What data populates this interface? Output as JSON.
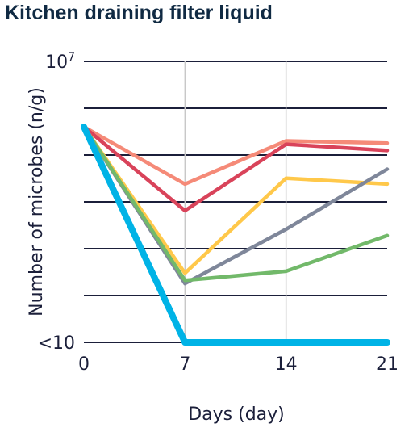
{
  "chart_data": {
    "type": "line",
    "title": "Kitchen draining filter liquid",
    "xlabel": "Days (day)",
    "ylabel": "Number of microbes (n/g)",
    "y_scale": "log",
    "ylim": [
      10,
      10000000
    ],
    "y_ticks": [
      {
        "value": 10,
        "base": "<10",
        "exp": ""
      },
      {
        "value": 100,
        "base": "",
        "exp": ""
      },
      {
        "value": 1000,
        "base": "",
        "exp": ""
      },
      {
        "value": 10000,
        "base": "",
        "exp": ""
      },
      {
        "value": 100000,
        "base": "",
        "exp": ""
      },
      {
        "value": 1000000,
        "base": "",
        "exp": ""
      },
      {
        "value": 10000000,
        "base": "10",
        "exp": "7"
      }
    ],
    "x_ticks": [
      0,
      7,
      14,
      21
    ],
    "xlim": [
      0,
      21
    ],
    "vertical_gridlines": [
      7,
      14
    ],
    "series": [
      {
        "color": "#f58a78",
        "values": [
          [
            0,
            400000
          ],
          [
            7,
            24000
          ],
          [
            14,
            200000
          ],
          [
            21,
            180000
          ]
        ]
      },
      {
        "color": "#d9435a",
        "values": [
          [
            0,
            400000
          ],
          [
            7,
            6500
          ],
          [
            14,
            170000
          ],
          [
            21,
            125000
          ]
        ]
      },
      {
        "color": "#ffc84a",
        "values": [
          [
            0,
            400000
          ],
          [
            7,
            300
          ],
          [
            14,
            32000
          ],
          [
            21,
            24000
          ]
        ]
      },
      {
        "color": "#7f879a",
        "values": [
          [
            0,
            400000
          ],
          [
            7,
            180
          ],
          [
            14,
            2600
          ],
          [
            21,
            50000
          ]
        ]
      },
      {
        "color": "#72b96a",
        "values": [
          [
            0,
            400000
          ],
          [
            7,
            210
          ],
          [
            14,
            330
          ],
          [
            21,
            1900
          ]
        ]
      },
      {
        "color": "#00b3e6",
        "values": [
          [
            0,
            400000
          ],
          [
            7,
            10
          ],
          [
            14,
            10
          ],
          [
            21,
            10
          ]
        ]
      }
    ]
  }
}
